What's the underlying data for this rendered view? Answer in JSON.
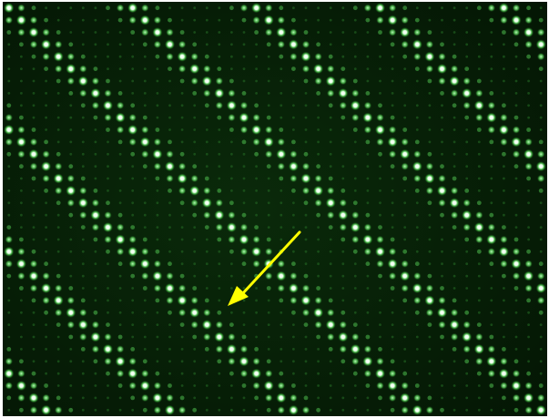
{
  "image": {
    "subject": "fluorescence-microarray-spot-grid",
    "colors": {
      "background": "#062006",
      "dim_spot": "#1f5e1f",
      "mid_spot": "#4fbf4f",
      "bright_spot": "#e8ffe8",
      "glow": "#5cff5c",
      "arrow": "#ffff00"
    },
    "grid": {
      "columns": 44,
      "rows": 34
    },
    "pattern": "diagonal-bands-of-bright-spots",
    "band_count": 6,
    "annotation": {
      "type": "arrow",
      "icon": "arrow-icon",
      "color": "#ffff00",
      "direction": "down-left"
    }
  }
}
